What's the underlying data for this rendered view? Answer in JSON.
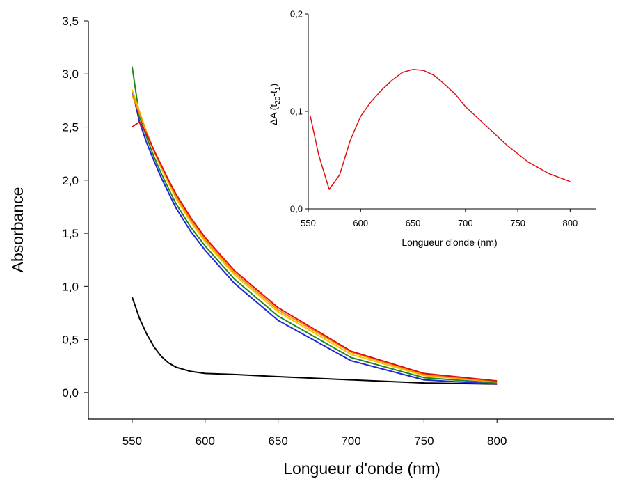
{
  "chart_data": [
    {
      "type": "line",
      "title": "",
      "xlabel": "Longueur d'onde (nm)",
      "ylabel": "Absorbance",
      "xlim": [
        520,
        880
      ],
      "ylim": [
        -0.25,
        3.5
      ],
      "x_ticks": [
        550,
        600,
        650,
        700,
        750,
        800
      ],
      "x_tick_labels": [
        "550",
        "600",
        "650",
        "700",
        "750",
        "800"
      ],
      "y_ticks": [
        0.0,
        0.5,
        1.0,
        1.5,
        2.0,
        2.5,
        3.0,
        3.5
      ],
      "y_tick_labels": [
        "0,0",
        "0,5",
        "1,0",
        "1,5",
        "2,0",
        "2,5",
        "3,0",
        "3,5"
      ],
      "grid": false,
      "legend": "none",
      "x": [
        550,
        555,
        560,
        565,
        570,
        575,
        580,
        590,
        600,
        620,
        650,
        700,
        750,
        800
      ],
      "series": [
        {
          "color": "#000000",
          "values": [
            0.9,
            0.7,
            0.55,
            0.43,
            0.34,
            0.28,
            0.24,
            0.2,
            0.18,
            0.17,
            0.15,
            0.12,
            0.09,
            0.08
          ]
        },
        {
          "color": "#2222dd",
          "values": [
            2.85,
            2.55,
            2.35,
            2.18,
            2.02,
            1.88,
            1.74,
            1.52,
            1.34,
            1.03,
            0.68,
            0.3,
            0.12,
            0.08
          ]
        },
        {
          "color": "#1e8a1e",
          "values": [
            3.07,
            2.6,
            2.4,
            2.22,
            2.06,
            1.92,
            1.78,
            1.56,
            1.38,
            1.07,
            0.72,
            0.33,
            0.14,
            0.09
          ]
        },
        {
          "color": "#f5c400",
          "values": [
            2.85,
            2.65,
            2.44,
            2.27,
            2.11,
            1.97,
            1.83,
            1.61,
            1.42,
            1.11,
            0.76,
            0.36,
            0.16,
            0.1
          ]
        },
        {
          "color": "#ff8c00",
          "values": [
            2.8,
            2.63,
            2.45,
            2.28,
            2.13,
            1.99,
            1.85,
            1.63,
            1.44,
            1.13,
            0.78,
            0.38,
            0.17,
            0.1
          ]
        },
        {
          "color": "#dd1111",
          "values": [
            2.5,
            2.55,
            2.43,
            2.28,
            2.14,
            2.0,
            1.87,
            1.65,
            1.46,
            1.15,
            0.8,
            0.39,
            0.18,
            0.11
          ]
        }
      ]
    },
    {
      "type": "line",
      "title": "",
      "xlabel": "Longueur d'onde (nm)",
      "ylabel": "ΔA (t20-t1)",
      "ylabel_parts": {
        "prefix": "ΔA (t",
        "sub1": "20",
        "mid": "-t",
        "sub2": "1",
        "suffix": ")"
      },
      "xlim": [
        550,
        825
      ],
      "ylim": [
        0.0,
        0.2
      ],
      "x_ticks": [
        550,
        600,
        650,
        700,
        750,
        800
      ],
      "x_tick_labels": [
        "550",
        "600",
        "650",
        "700",
        "750",
        "800"
      ],
      "y_ticks": [
        0.0,
        0.1,
        0.2
      ],
      "y_tick_labels": [
        "0,0",
        "0,1",
        "0,2"
      ],
      "grid": false,
      "legend": "none",
      "series": [
        {
          "color": "#dd1111",
          "x": [
            552,
            560,
            570,
            580,
            590,
            600,
            610,
            620,
            630,
            640,
            650,
            660,
            670,
            680,
            690,
            700,
            720,
            740,
            760,
            780,
            800
          ],
          "values": [
            0.095,
            0.055,
            0.02,
            0.035,
            0.07,
            0.095,
            0.11,
            0.122,
            0.132,
            0.14,
            0.143,
            0.142,
            0.137,
            0.128,
            0.118,
            0.105,
            0.085,
            0.065,
            0.048,
            0.036,
            0.028
          ]
        }
      ]
    }
  ]
}
